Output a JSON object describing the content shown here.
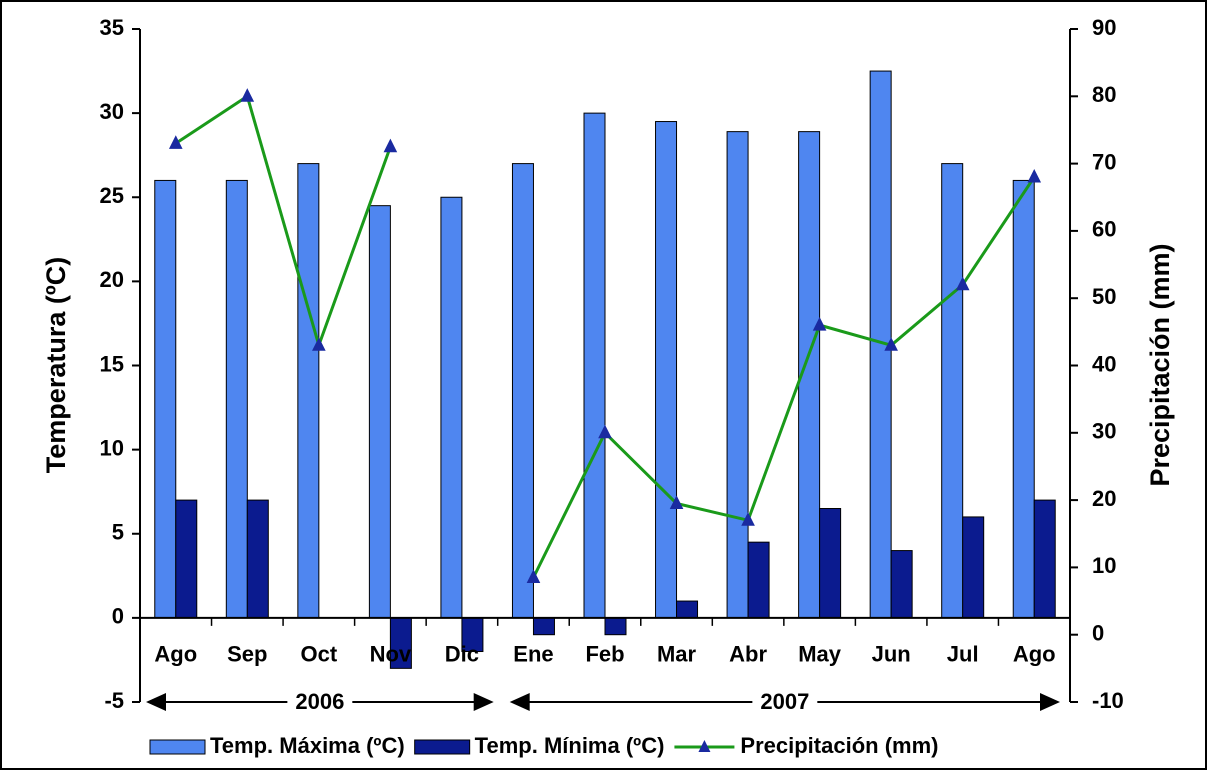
{
  "chart_data": {
    "type": "bar",
    "categories": [
      "Ago",
      "Sep",
      "Oct",
      "Nov",
      "Dic",
      "Ene",
      "Feb",
      "Mar",
      "Abr",
      "May",
      "Jun",
      "Jul",
      "Ago"
    ],
    "series": [
      {
        "name": "Temp. Máxima (ºC)",
        "type": "bar",
        "color": "#4f86f0",
        "values": [
          26,
          26,
          27,
          24.5,
          25,
          27,
          30,
          29.5,
          28.9,
          28.9,
          32.5,
          27,
          26
        ]
      },
      {
        "name": "Temp. Mínima (ºC)",
        "type": "bar",
        "color": "#0b1b8f",
        "values": [
          7,
          7,
          0,
          -3,
          -2,
          -1,
          -1,
          1,
          4.5,
          6.5,
          4,
          6,
          7
        ]
      },
      {
        "name": "Precipitación (mm)",
        "type": "line",
        "axis": "y2",
        "color": "#1a9a1a",
        "marker_color": "#1a2aa0",
        "values": [
          73,
          80,
          43,
          72.5,
          null,
          8.5,
          30,
          19.5,
          17,
          46,
          43,
          52,
          68
        ]
      }
    ],
    "y_label": "Temperatura (ºC)",
    "y2_label": "Precipitación (mm)",
    "ylim": [
      -5,
      35
    ],
    "yticks": [
      -5,
      0,
      5,
      10,
      15,
      20,
      25,
      30,
      35
    ],
    "y2lim": [
      -10,
      90
    ],
    "y2ticks": [
      -10,
      0,
      10,
      20,
      30,
      40,
      50,
      60,
      70,
      80,
      90
    ],
    "annotations": [
      "2006",
      "2007"
    ],
    "legend": "bottom"
  }
}
